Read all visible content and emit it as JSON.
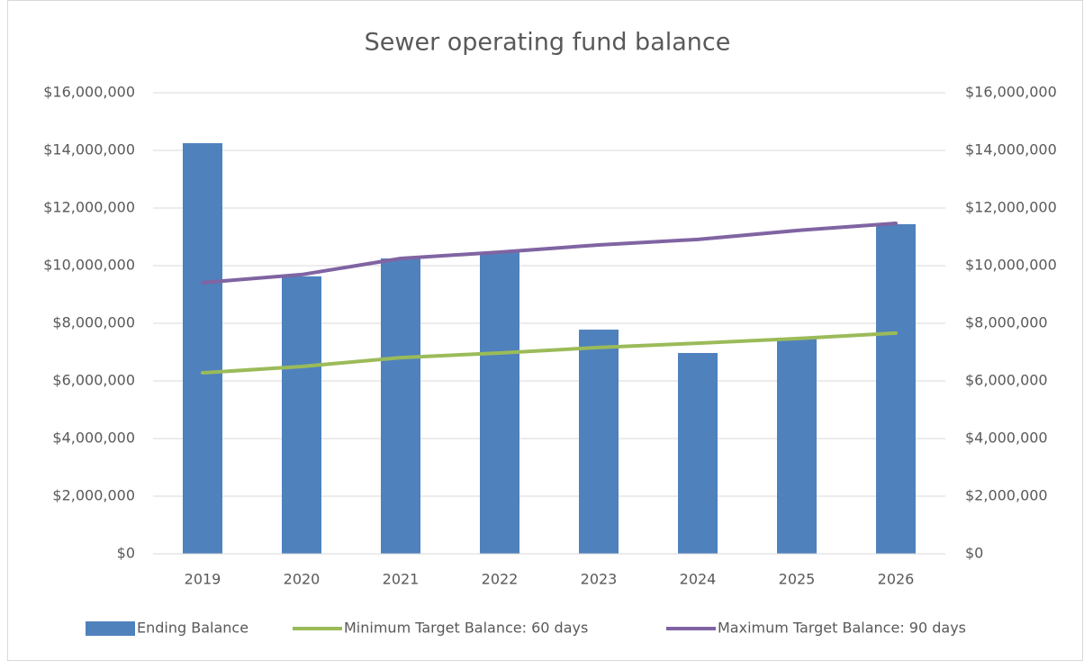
{
  "chart_data": {
    "type": "bar",
    "title": "Sewer operating fund balance",
    "categories": [
      "2019",
      "2020",
      "2021",
      "2022",
      "2023",
      "2024",
      "2025",
      "2026"
    ],
    "series": [
      {
        "name": "Ending Balance",
        "type": "bar",
        "color": "#4f81bd",
        "values": [
          14250000,
          9630000,
          10250000,
          10470000,
          7780000,
          6970000,
          7500000,
          11440000
        ]
      },
      {
        "name": "Minimum Target Balance: 60 days",
        "type": "line",
        "axis": "y2",
        "color": "#9bbb59",
        "values": [
          6280000,
          6500000,
          6810000,
          6970000,
          7160000,
          7310000,
          7470000,
          7660000
        ]
      },
      {
        "name": "Maximum Target Balance: 90 days",
        "type": "line",
        "axis": "y2",
        "color": "#8064a2",
        "values": [
          9410000,
          9690000,
          10250000,
          10470000,
          10720000,
          10910000,
          11220000,
          11470000
        ]
      }
    ],
    "ylim": [
      0,
      16000000
    ],
    "yticks": [
      {
        "value": 0,
        "label": "$0"
      },
      {
        "value": 2000000,
        "label": "$2,000,000"
      },
      {
        "value": 4000000,
        "label": "$4,000,000"
      },
      {
        "value": 6000000,
        "label": "$6,000,000"
      },
      {
        "value": 8000000,
        "label": "$8,000,000"
      },
      {
        "value": 10000000,
        "label": "$10,000,000"
      },
      {
        "value": 12000000,
        "label": "$12,000,000"
      },
      {
        "value": 14000000,
        "label": "$14,000,000"
      },
      {
        "value": 16000000,
        "label": "$16,000,000"
      }
    ],
    "y2lim": [
      0,
      16000000
    ],
    "y2ticks": [
      {
        "value": 0,
        "label": "$0"
      },
      {
        "value": 2000000,
        "label": "$2,000,000"
      },
      {
        "value": 4000000,
        "label": "$4,000,000"
      },
      {
        "value": 6000000,
        "label": "$6,000,000"
      },
      {
        "value": 8000000,
        "label": "$8,000,000"
      },
      {
        "value": 10000000,
        "label": "$10,000,000"
      },
      {
        "value": 12000000,
        "label": "$12,000,000"
      },
      {
        "value": 14000000,
        "label": "$14,000,000"
      },
      {
        "value": 16000000,
        "label": "$16,000,000"
      }
    ],
    "grid": true,
    "legend": "bottom"
  }
}
